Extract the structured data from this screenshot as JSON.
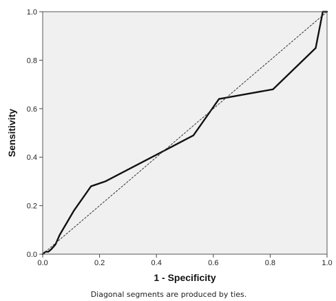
{
  "chart_data": {
    "type": "line",
    "xlabel": "1 - Specificity",
    "ylabel": "Sensitivity",
    "xlim": [
      0.0,
      1.0
    ],
    "ylim": [
      0.0,
      1.0
    ],
    "x_ticks": [
      "0.0",
      "0.2",
      "0.4",
      "0.6",
      "0.8",
      "1.0"
    ],
    "y_ticks": [
      "0.0",
      "0.2",
      "0.4",
      "0.6",
      "0.8",
      "1.0"
    ],
    "footnote": "Diagonal segments are produced by ties.",
    "grid": false,
    "background": "#f0f0f0",
    "series": [
      {
        "style": "solid",
        "color": "#111111",
        "x": [
          0.0,
          0.01,
          0.02,
          0.03,
          0.045,
          0.06,
          0.09,
          0.11,
          0.17,
          0.22,
          0.4,
          0.53,
          0.62,
          0.81,
          0.96,
          0.985,
          1.0
        ],
        "y": [
          0.0,
          0.01,
          0.01,
          0.02,
          0.04,
          0.08,
          0.14,
          0.18,
          0.28,
          0.3,
          0.41,
          0.49,
          0.64,
          0.68,
          0.85,
          1.0,
          1.0
        ]
      },
      {
        "style": "dashed",
        "color": "#333333",
        "x": [
          0.0,
          1.0
        ],
        "y": [
          0.0,
          1.0
        ]
      }
    ]
  }
}
